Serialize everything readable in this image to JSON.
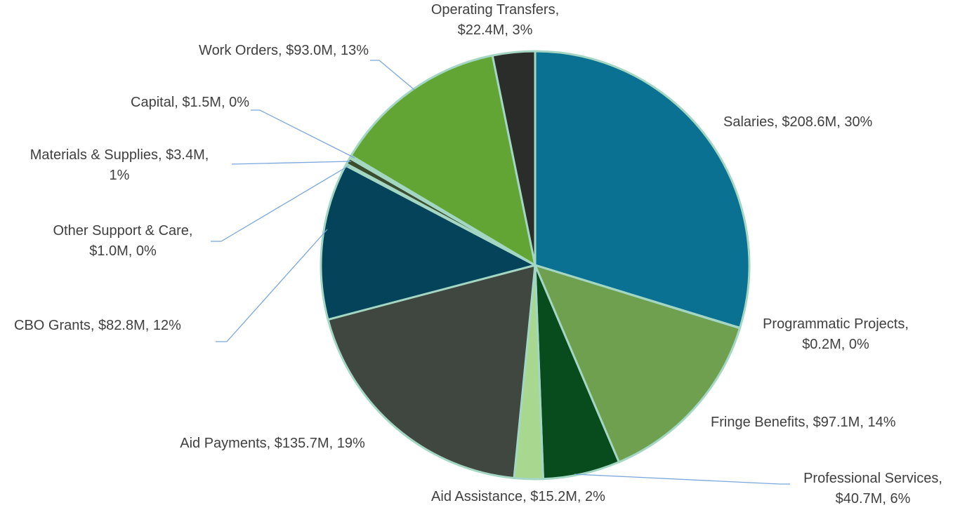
{
  "chart_data": {
    "type": "pie",
    "values": [
      208.6,
      0.2,
      97.1,
      40.7,
      15.2,
      135.7,
      82.8,
      1.0,
      3.4,
      1.5,
      93.0,
      22.4
    ],
    "value_labels": [
      [
        "Salaries, $208.6M, 30%"
      ],
      [
        "Programmatic Projects,",
        "$0.2M, 0%"
      ],
      [
        "Fringe Benefits, $97.1M, 14%"
      ],
      [
        "Professional Services,",
        "$40.7M, 6%"
      ],
      [
        "Aid Assistance, $15.2M, 2%"
      ],
      [
        "Aid Payments, $135.7M, 19%"
      ],
      [
        "CBO Grants, $82.8M, 12%"
      ],
      [
        "Other Support & Care,",
        "$1.0M, 0%"
      ],
      [
        "Materials & Supplies, $3.4M,",
        "1%"
      ],
      [
        "Capital, $1.5M, 0%"
      ],
      [
        "Work Orders, $93.0M, 13%"
      ],
      [
        "Operating Transfers,",
        "$22.4M, 3%"
      ]
    ],
    "colors": [
      "#0b7192",
      "#5f9bb0",
      "#6fa04f",
      "#084b1c",
      "#a8d88f",
      "#404740",
      "#044359",
      "#a8d8b0",
      "#3a4d2e",
      "#a8d8b0",
      "#62a534",
      "#2b2d2a"
    ]
  }
}
